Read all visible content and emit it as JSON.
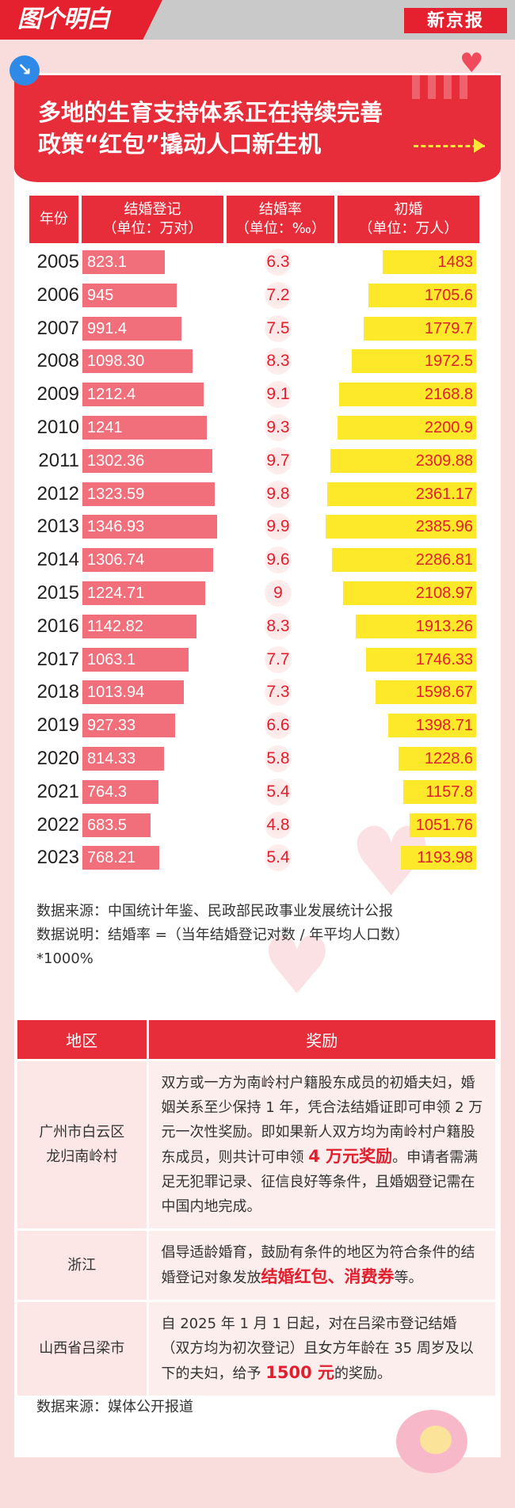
{
  "header": {
    "brand_left": "图个明白",
    "brand_right": "新京报",
    "corner_icon": "arrow-down-right-icon",
    "heart_icon": "heart-icon"
  },
  "banner": {
    "title_line1": "多地的生育支持体系正在持续完善",
    "title_line2": "政策“红包”撬动人口新生机"
  },
  "table_header": {
    "year": "年份",
    "marriage": "结婚登记",
    "marriage_unit": "（单位：万对）",
    "rate": "结婚率",
    "rate_unit": "（单位：‰）",
    "first": "初婚",
    "first_unit": "（单位：万人）"
  },
  "chart_data": {
    "type": "bar",
    "categories": [
      "2005",
      "2006",
      "2007",
      "2008",
      "2009",
      "2010",
      "2011",
      "2012",
      "2013",
      "2014",
      "2015",
      "2016",
      "2017",
      "2018",
      "2019",
      "2020",
      "2021",
      "2022",
      "2023"
    ],
    "series": [
      {
        "name": "结婚登记",
        "unit": "万对",
        "labels": [
          "823.1",
          "945",
          "991.4",
          "1098.30",
          "1212.4",
          "1241",
          "1302.36",
          "1323.59",
          "1346.93",
          "1306.74",
          "1224.71",
          "1142.82",
          "1063.1",
          "1013.94",
          "927.33",
          "814.33",
          "764.3",
          "683.5",
          "768.21"
        ],
        "values": [
          823.1,
          945,
          991.4,
          1098.3,
          1212.4,
          1241,
          1302.36,
          1323.59,
          1346.93,
          1306.74,
          1224.71,
          1142.82,
          1063.1,
          1013.94,
          927.33,
          814.33,
          764.3,
          683.5,
          768.21
        ]
      },
      {
        "name": "结婚率",
        "unit": "‰",
        "labels": [
          "6.3",
          "7.2",
          "7.5",
          "8.3",
          "9.1",
          "9.3",
          "9.7",
          "9.8",
          "9.9",
          "9.6",
          "9",
          "8.3",
          "7.7",
          "7.3",
          "6.6",
          "5.8",
          "5.4",
          "4.8",
          "5.4"
        ],
        "values": [
          6.3,
          7.2,
          7.5,
          8.3,
          9.1,
          9.3,
          9.7,
          9.8,
          9.9,
          9.6,
          9,
          8.3,
          7.7,
          7.3,
          6.6,
          5.8,
          5.4,
          4.8,
          5.4
        ]
      },
      {
        "name": "初婚",
        "unit": "万人",
        "labels": [
          "1483",
          "1705.6",
          "1779.7",
          "1972.5",
          "2168.8",
          "2200.9",
          "2309.88",
          "2361.17",
          "2385.96",
          "2286.81",
          "2108.97",
          "1913.26",
          "1746.33",
          "1598.67",
          "1398.71",
          "1228.6",
          "1157.8",
          "1051.76",
          "1193.98"
        ],
        "values": [
          1483,
          1705.6,
          1779.7,
          1972.5,
          2168.8,
          2200.9,
          2309.88,
          2361.17,
          2385.96,
          2286.81,
          2108.97,
          1913.26,
          1746.33,
          1598.67,
          1398.71,
          1228.6,
          1157.8,
          1051.76,
          1193.98
        ]
      }
    ],
    "colors": {
      "marriage": "#f06f7b",
      "rate": "#e0202e",
      "first": "#fde82a"
    }
  },
  "notes": {
    "line1": "数据来源：中国统计年鉴、民政部民政事业发展统计公报",
    "line2": "数据说明：结婚率 =（当年结婚登记对数 / 年平均人口数）",
    "line3": "*1000%"
  },
  "policy": {
    "header_region": "地区",
    "header_reward": "奖励",
    "rows": [
      {
        "region_line1": "广州市白云区",
        "region_line2": "龙归南岭村",
        "text1": "双方或一方为南岭村户籍股东成员的初婚夫妇，婚姻关系至少保持 1 年，凭合法结婚证即可申领 2 万元一次性奖励。即如果新人双方均为南岭村户籍股东成员，则共计可申领 ",
        "highlight": "4 万元奖励",
        "text2": "。申请者需满足无犯罪记录、征信良好等条件，且婚姻登记需在中国内地完成。"
      },
      {
        "region_line1": "浙江",
        "text1": "倡导适龄婚育，鼓励有条件的地区为符合条件的结婚登记对象发放",
        "highlight": "结婚红包、消费券",
        "text2": "等。"
      },
      {
        "region_line1": "山西省吕梁市",
        "text1": "自 2025 年 1 月 1 日起，对在吕梁市登记结婚（双方均为初次登记）且女方年龄在 35 周岁及以下的夫妇，给予 ",
        "highlight": "1500 元",
        "text2": "的奖励。"
      }
    ],
    "source": "数据来源：媒体公开报道"
  }
}
